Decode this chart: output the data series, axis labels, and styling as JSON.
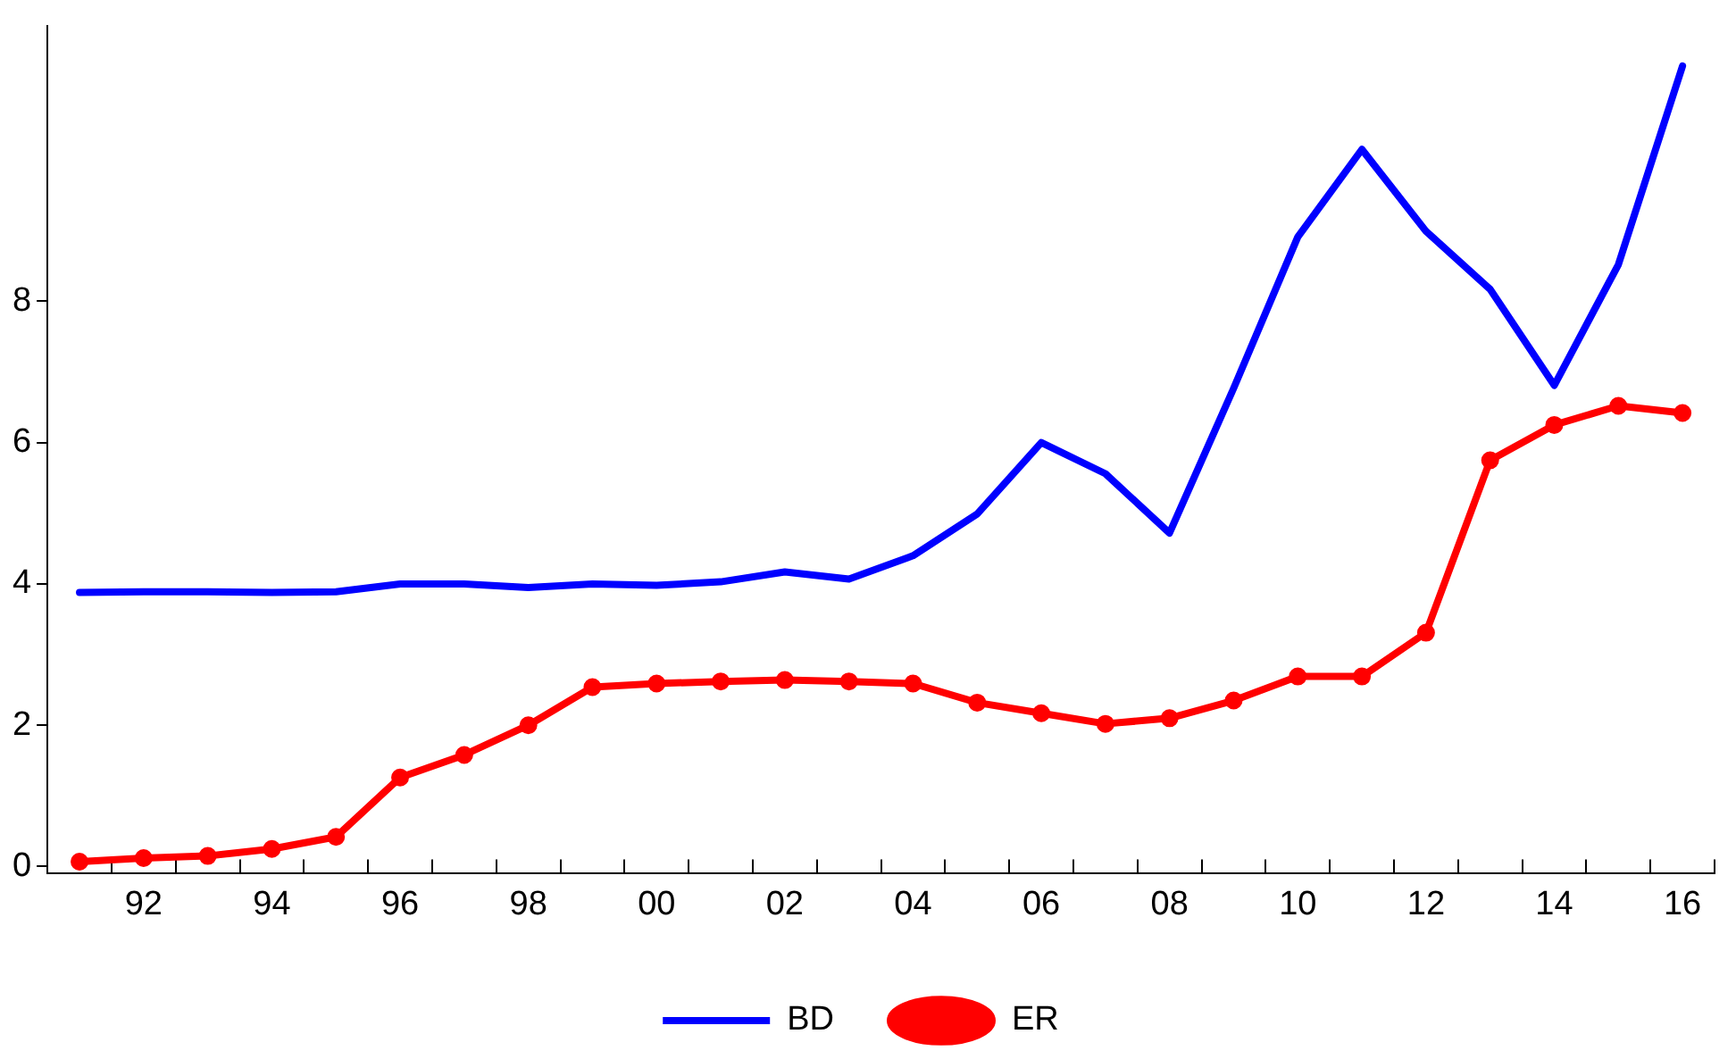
{
  "chart_data": {
    "type": "line",
    "categories": [
      null,
      "92",
      null,
      "94",
      null,
      "96",
      null,
      "98",
      null,
      "00",
      null,
      "02",
      null,
      "04",
      null,
      "06",
      null,
      "08",
      null,
      "10",
      null,
      "12",
      null,
      "14",
      null,
      "16"
    ],
    "series": [
      {
        "name": "BD",
        "color": "#0000ff",
        "marker": "none",
        "values": [
          3.88,
          3.89,
          3.89,
          3.88,
          3.89,
          4.0,
          4.0,
          3.95,
          4.0,
          3.98,
          4.03,
          4.17,
          4.07,
          4.4,
          4.99,
          6.0,
          5.56,
          4.72,
          6.77,
          8.91,
          10.15,
          8.99,
          8.17,
          6.81,
          8.52,
          11.33
        ]
      },
      {
        "name": "ER",
        "color": "#ff0000",
        "marker": "circle",
        "values": [
          0.07,
          0.12,
          0.15,
          0.25,
          0.42,
          1.26,
          1.58,
          2.0,
          2.54,
          2.59,
          2.62,
          2.64,
          2.62,
          2.59,
          2.32,
          2.17,
          2.02,
          2.1,
          2.35,
          2.69,
          2.69,
          3.31,
          5.75,
          6.25,
          6.52,
          6.42
        ]
      }
    ],
    "ylim": [
      -0.1,
      11.9
    ],
    "yticks": [
      0,
      2,
      4,
      6,
      8
    ],
    "grid": false,
    "legend": "bottom",
    "line_style": "solid"
  }
}
